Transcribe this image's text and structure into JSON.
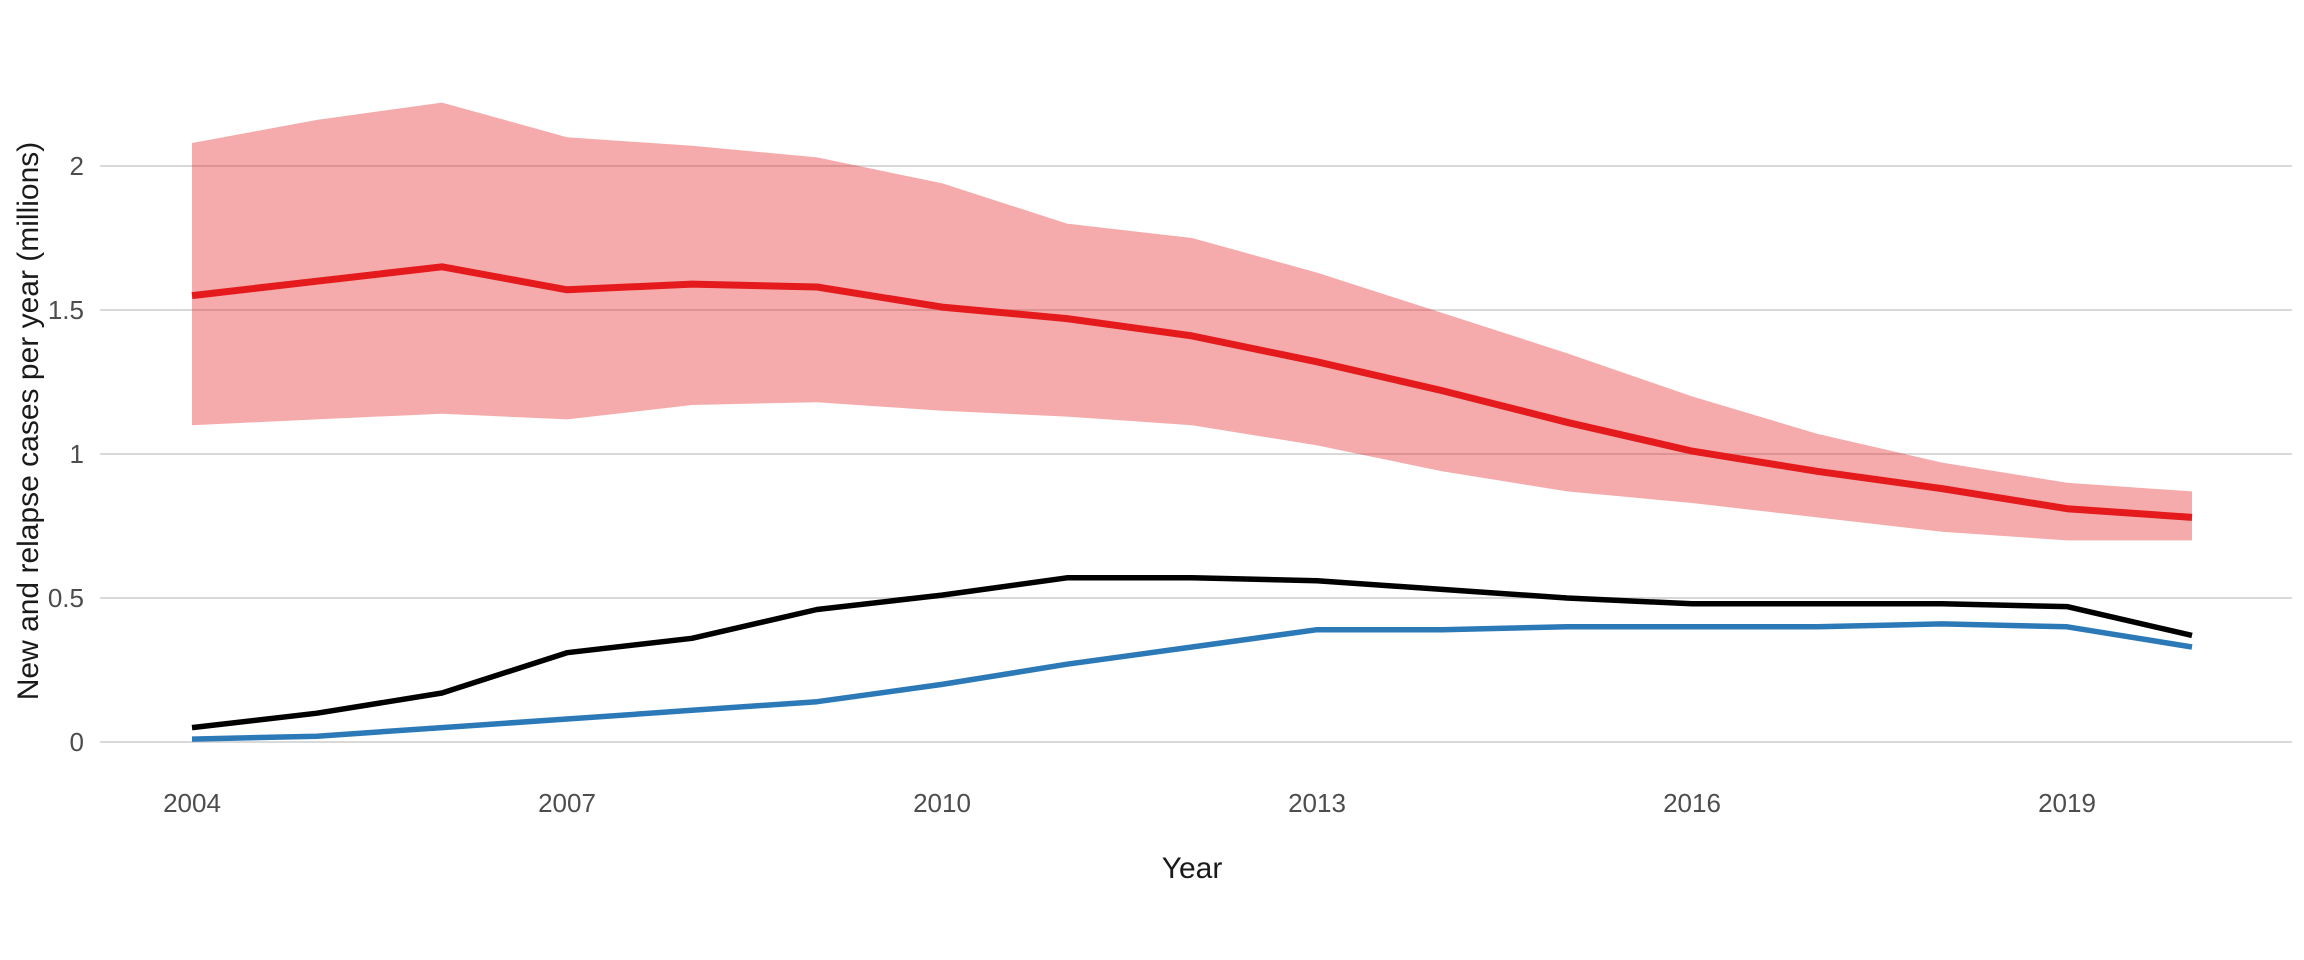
{
  "chart_data": {
    "type": "line",
    "title": "",
    "xlabel": "Year",
    "ylabel": "New and relapse cases per year (millions)",
    "x": [
      2004,
      2005,
      2006,
      2007,
      2008,
      2009,
      2010,
      2011,
      2012,
      2013,
      2014,
      2015,
      2016,
      2017,
      2018,
      2019,
      2020
    ],
    "x_tick_years": [
      2004,
      2007,
      2010,
      2013,
      2016,
      2019
    ],
    "x_tick_labels": [
      "2004",
      "2007",
      "2010",
      "2013",
      "2016",
      "2019"
    ],
    "y_tick_values": [
      0,
      0.5,
      1,
      1.5,
      2
    ],
    "y_tick_labels": [
      "0",
      "0.5",
      "1",
      "1.5",
      "2"
    ],
    "xlim": [
      2004,
      2020
    ],
    "ylim": [
      0,
      2.3
    ],
    "grid": "horizontal-major-only",
    "legend": "none",
    "series": [
      {
        "name": "red-line-with-confidence-band",
        "color": "#E41A1C",
        "line_width": 7,
        "values": [
          1.55,
          1.6,
          1.65,
          1.57,
          1.59,
          1.58,
          1.51,
          1.47,
          1.41,
          1.32,
          1.22,
          1.11,
          1.01,
          0.94,
          0.88,
          0.81,
          0.78
        ],
        "band_upper": [
          2.08,
          2.16,
          2.22,
          2.1,
          2.07,
          2.03,
          1.94,
          1.8,
          1.75,
          1.63,
          1.49,
          1.35,
          1.2,
          1.07,
          0.97,
          0.9,
          0.87
        ],
        "band_lower": [
          1.1,
          1.12,
          1.14,
          1.12,
          1.17,
          1.18,
          1.15,
          1.13,
          1.1,
          1.03,
          0.94,
          0.87,
          0.83,
          0.78,
          0.73,
          0.7,
          0.7
        ],
        "band_fill": "rgba(228,26,28,0.37)"
      },
      {
        "name": "black-line",
        "color": "#000000",
        "line_width": 5.5,
        "values": [
          0.05,
          0.1,
          0.17,
          0.31,
          0.36,
          0.46,
          0.51,
          0.57,
          0.57,
          0.56,
          0.53,
          0.5,
          0.48,
          0.48,
          0.48,
          0.47,
          0.37
        ]
      },
      {
        "name": "blue-line",
        "color": "#2C79B8",
        "line_width": 5.5,
        "values": [
          0.01,
          0.02,
          0.05,
          0.08,
          0.11,
          0.14,
          0.2,
          0.27,
          0.33,
          0.39,
          0.39,
          0.4,
          0.4,
          0.4,
          0.41,
          0.4,
          0.33
        ]
      }
    ],
    "colors": {
      "background": "#FFFFFF",
      "gridline": "#D9D9D9",
      "axis_text": "#4D4D4D",
      "axis_title": "#1A1A1A"
    }
  }
}
